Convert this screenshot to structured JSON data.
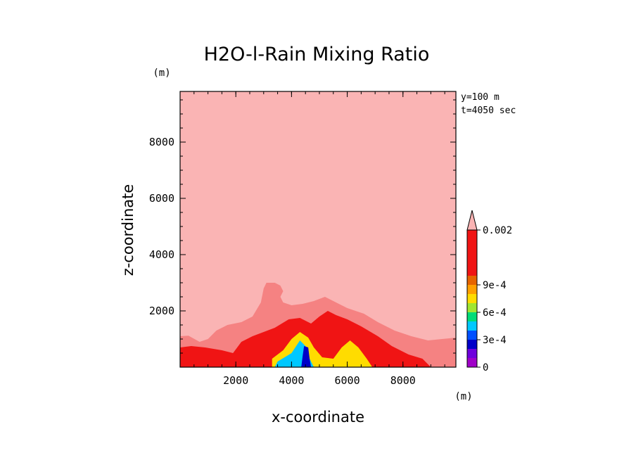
{
  "chart_data": {
    "type": "heatmap",
    "title": "H2O-l-Rain Mixing Ratio",
    "xlabel": "x-coordinate",
    "ylabel": "z-coordinate",
    "x_unit": "(m)",
    "y_unit": "(m)",
    "annotations": [
      "y=100 m",
      "t=4050 sec"
    ],
    "xlim": [
      0,
      9900
    ],
    "ylim": [
      0,
      9800
    ],
    "x_ticks": [
      "2000",
      "4000",
      "6000",
      "8000"
    ],
    "y_ticks": [
      "2000",
      "4000",
      "6000",
      "8000"
    ],
    "colorbar": {
      "labels": [
        "0.002",
        "9e-4",
        "6e-4",
        "3e-4",
        "0"
      ],
      "levels": [
        0,
        0.0001,
        0.0002,
        0.0003,
        0.0004,
        0.0005,
        0.0006,
        0.0007,
        0.0008,
        0.0009,
        0.001,
        0.002
      ],
      "colors": [
        "#a000c8",
        "#6e00dc",
        "#0000c8",
        "#0050ff",
        "#00c8ff",
        "#00dc78",
        "#a0e632",
        "#ffdc00",
        "#ffa000",
        "#e66400",
        "#f01414",
        "#f58282"
      ],
      "extend_color": "#fab4b4"
    },
    "fields": {
      "background": "#fab4b4",
      "regions": [
        {
          "level": "0.001-0.002",
          "color": "#f58282",
          "outline": [
            [
              0,
              0
            ],
            [
              0,
              1100
            ],
            [
              300,
              1120
            ],
            [
              700,
              900
            ],
            [
              1000,
              1000
            ],
            [
              1300,
              1300
            ],
            [
              1700,
              1500
            ],
            [
              2200,
              1600
            ],
            [
              2600,
              1800
            ],
            [
              2900,
              2300
            ],
            [
              3000,
              2800
            ],
            [
              3100,
              3000
            ],
            [
              3400,
              3000
            ],
            [
              3600,
              2900
            ],
            [
              3700,
              2700
            ],
            [
              3600,
              2500
            ],
            [
              3700,
              2300
            ],
            [
              4000,
              2200
            ],
            [
              4400,
              2250
            ],
            [
              4800,
              2350
            ],
            [
              5200,
              2500
            ],
            [
              5600,
              2300
            ],
            [
              6000,
              2100
            ],
            [
              6600,
              1900
            ],
            [
              7100,
              1600
            ],
            [
              7700,
              1300
            ],
            [
              8300,
              1100
            ],
            [
              8900,
              950
            ],
            [
              9400,
              1000
            ],
            [
              9900,
              1050
            ],
            [
              9900,
              0
            ]
          ]
        },
        {
          "level": "0.0009-0.001",
          "color": "#f01414",
          "outline": [
            [
              0,
              0
            ],
            [
              0,
              700
            ],
            [
              400,
              750
            ],
            [
              900,
              700
            ],
            [
              1500,
              600
            ],
            [
              1900,
              500
            ],
            [
              2200,
              900
            ],
            [
              2600,
              1100
            ],
            [
              3000,
              1250
            ],
            [
              3400,
              1400
            ],
            [
              3900,
              1700
            ],
            [
              4300,
              1750
            ],
            [
              4700,
              1550
            ],
            [
              5000,
              1800
            ],
            [
              5300,
              2000
            ],
            [
              5600,
              1850
            ],
            [
              6000,
              1700
            ],
            [
              6500,
              1450
            ],
            [
              7100,
              1100
            ],
            [
              7600,
              750
            ],
            [
              8200,
              450
            ],
            [
              8700,
              300
            ],
            [
              9000,
              0
            ]
          ]
        },
        {
          "level": "0.0005-0.0008",
          "color": "#ffdc00",
          "outline": [
            [
              3300,
              0
            ],
            [
              3300,
              300
            ],
            [
              3700,
              600
            ],
            [
              4000,
              1000
            ],
            [
              4300,
              1250
            ],
            [
              4600,
              1050
            ],
            [
              4800,
              700
            ],
            [
              5100,
              350
            ],
            [
              5500,
              300
            ],
            [
              5800,
              700
            ],
            [
              6100,
              950
            ],
            [
              6400,
              700
            ],
            [
              6700,
              300
            ],
            [
              6900,
              0
            ]
          ]
        },
        {
          "level": "0.0002-0.0004",
          "color": "#00c8ff",
          "outline": [
            [
              3400,
              0
            ],
            [
              3500,
              200
            ],
            [
              4000,
              500
            ],
            [
              4300,
              950
            ],
            [
              4550,
              700
            ],
            [
              4650,
              300
            ],
            [
              4800,
              0
            ]
          ]
        },
        {
          "level": "0.0001-0.0002",
          "color": "#0000c8",
          "outline": [
            [
              4350,
              0
            ],
            [
              4400,
              400
            ],
            [
              4450,
              750
            ],
            [
              4600,
              700
            ],
            [
              4650,
              300
            ],
            [
              4700,
              0
            ]
          ]
        }
      ]
    }
  }
}
